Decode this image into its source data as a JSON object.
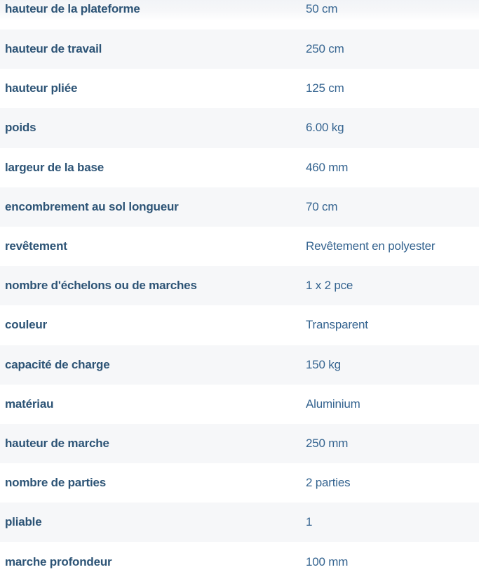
{
  "table": {
    "colors": {
      "row_alt_bg": "#f6f7f9",
      "label_color": "#2d5476",
      "value_color": "#356490"
    },
    "rows": [
      {
        "label": "hauteur de la plateforme",
        "value": "50 cm"
      },
      {
        "label": "hauteur de travail",
        "value": "250 cm"
      },
      {
        "label": "hauteur pliée",
        "value": "125 cm"
      },
      {
        "label": "poids",
        "value": "6.00 kg"
      },
      {
        "label": "largeur de la base",
        "value": "460 mm"
      },
      {
        "label": "encombrement au sol longueur",
        "value": "70 cm"
      },
      {
        "label": "revêtement",
        "value": "Revêtement en polyester"
      },
      {
        "label": "nombre d'échelons ou de marches",
        "value": "1 x 2 pce"
      },
      {
        "label": "couleur",
        "value": "Transparent"
      },
      {
        "label": "capacité de charge",
        "value": "150 kg"
      },
      {
        "label": "matériau",
        "value": "Aluminium"
      },
      {
        "label": "hauteur de marche",
        "value": "250 mm"
      },
      {
        "label": "nombre de parties",
        "value": "2 parties"
      },
      {
        "label": "pliable",
        "value": "1"
      },
      {
        "label": "marche profondeur",
        "value": "100 mm"
      }
    ]
  }
}
